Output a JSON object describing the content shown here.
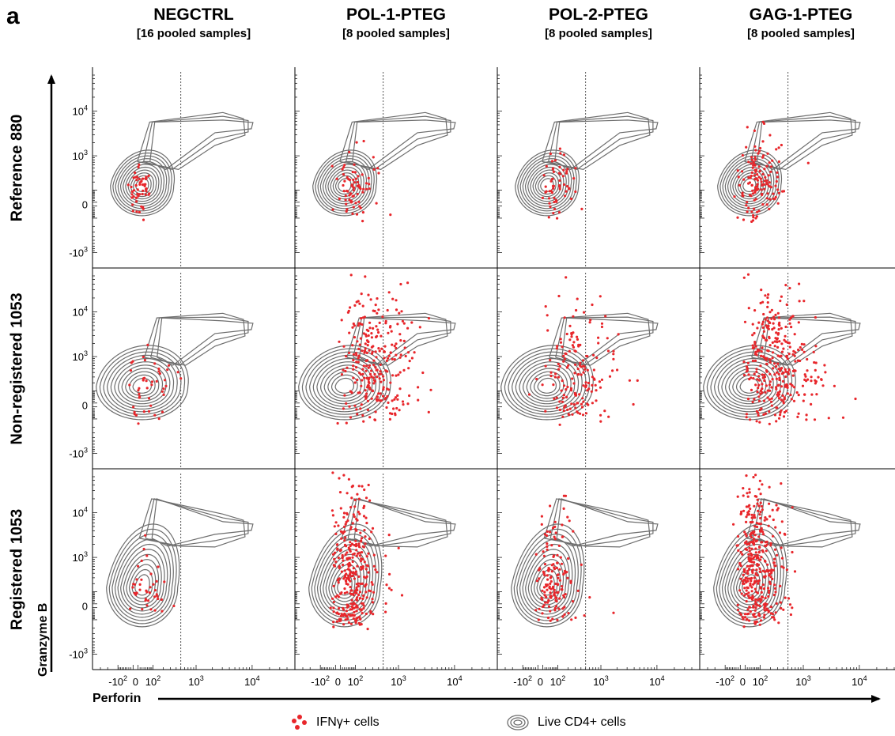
{
  "panel_letter": "a",
  "columns": [
    {
      "title": "NEGCTRL",
      "subtitle": "[16 pooled samples]"
    },
    {
      "title": "POL-1-PTEG",
      "subtitle": "[8 pooled samples]"
    },
    {
      "title": "POL-2-PTEG",
      "subtitle": "[8 pooled samples]"
    },
    {
      "title": "GAG-1-PTEG",
      "subtitle": "[8 pooled samples]"
    }
  ],
  "rows": [
    {
      "title": "Reference 880"
    },
    {
      "title": "Non-registered 1053"
    },
    {
      "title": "Registered 1053"
    }
  ],
  "legend": {
    "ifng": "IFNγ+ cells",
    "cd4": "Live CD4+ cells"
  },
  "colors": {
    "ifng_dots": "#e8262b",
    "contours": "#6d6d6d",
    "gate_line": "#555555"
  },
  "chart_data": {
    "type": "scatter",
    "xlabel": "Perforin",
    "ylabel": "Granzyme B",
    "x_scale": "biexponential",
    "y_scale": "biexponential",
    "x_ticks": [
      "-10^2",
      "0",
      "10^2",
      "10^3",
      "10^4"
    ],
    "y_ticks": [
      "-10^3",
      "0",
      "10^3",
      "10^4"
    ],
    "perforin_gate": 500,
    "series": [
      {
        "name": "IFNγ+ cells",
        "kind": "dots"
      },
      {
        "name": "Live CD4+ cells",
        "kind": "contours"
      }
    ],
    "clusters": [
      [
        {
          "cx": 40,
          "cy": 150,
          "sx": 0.18,
          "sy": 0.25,
          "n": 55
        },
        {
          "cx": 110,
          "cy": 200,
          "sx": 0.3,
          "sy": 0.45,
          "n": 75
        },
        {
          "cx": 110,
          "cy": 190,
          "sx": 0.25,
          "sy": 0.4,
          "n": 60
        },
        {
          "cx": 100,
          "cy": 260,
          "sx": 0.35,
          "sy": 0.55,
          "n": 140
        }
      ],
      [
        {
          "cx": 80,
          "cy": 220,
          "sx": 0.35,
          "sy": 0.5,
          "n": 45
        },
        {
          "cx": 320,
          "cy": 600,
          "sx": 0.4,
          "sy": 0.9,
          "n": 280
        },
        {
          "cx": 300,
          "cy": 450,
          "sx": 0.4,
          "sy": 0.8,
          "n": 170
        },
        {
          "cx": 280,
          "cy": 700,
          "sx": 0.45,
          "sy": 0.9,
          "n": 330
        }
      ],
      [
        {
          "cx": 70,
          "cy": 200,
          "sx": 0.3,
          "sy": 0.5,
          "n": 40
        },
        {
          "cx": 90,
          "cy": 450,
          "sx": 0.35,
          "sy": 1.0,
          "n": 330
        },
        {
          "cx": 90,
          "cy": 300,
          "sx": 0.3,
          "sy": 0.8,
          "n": 150
        },
        {
          "cx": 90,
          "cy": 600,
          "sx": 0.35,
          "sy": 1.0,
          "n": 380
        }
      ]
    ]
  }
}
